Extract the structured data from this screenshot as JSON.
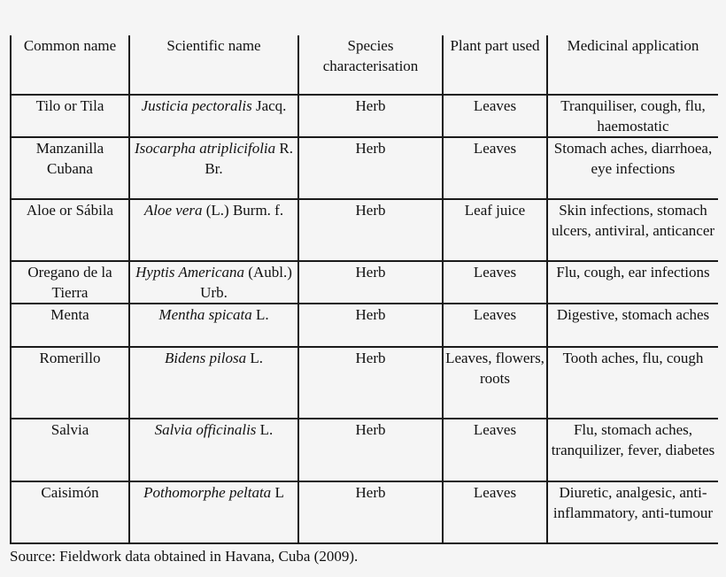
{
  "table": {
    "headers": [
      "Common name",
      "Scientific name",
      "Species characterisation",
      "Plant part used",
      "Medicinal application"
    ],
    "rows": [
      {
        "common": "Tilo or Tila",
        "sci_italic": "Justicia pectoralis",
        "sci_rest": "Jacq.",
        "species": "Herb",
        "part": "Leaves",
        "application": "Tranquiliser, cough, flu, haemostatic",
        "height": 48
      },
      {
        "common": "Manzanilla Cubana",
        "sci_italic": "Isocarpha atriplicifolia",
        "sci_rest": "R. Br.",
        "species": "Herb",
        "part": "Leaves",
        "application": "Stomach aches, diarrhoea, eye infections",
        "height": 70
      },
      {
        "common": "Aloe or Sábila",
        "sci_italic": "Aloe vera",
        "sci_rest": "(L.) Burm. f.",
        "species": "Herb",
        "part": "Leaf juice",
        "application": "Skin infections, stomach ulcers, antiviral, anticancer",
        "height": 70
      },
      {
        "common": "Oregano de la Tierra",
        "sci_italic": "Hyptis Americana",
        "sci_rest": "(Aubl.) Urb.",
        "species": "Herb",
        "part": "Leaves",
        "application": "Flu, cough, ear infections",
        "height": 47
      },
      {
        "common": "Menta",
        "sci_italic": "Mentha spicata",
        "sci_rest": "L.",
        "species": "Herb",
        "part": "Leaves",
        "application": "Digestive, stomach aches",
        "height": 49
      },
      {
        "common": "Romerillo",
        "sci_italic": "Bidens pilosa",
        "sci_rest": "L.",
        "species": "Herb",
        "part": "Leaves, flowers, roots",
        "application": "Tooth aches, flu, cough",
        "height": 81
      },
      {
        "common": "Salvia",
        "sci_italic": "Salvia officinalis",
        "sci_rest": "L.",
        "species": "Herb",
        "part": "Leaves",
        "application": "Flu, stomach aches, tranquilizer, fever, diabetes",
        "height": 71
      },
      {
        "common": "Caisimón",
        "sci_italic": "Pothomorphe peltata",
        "sci_rest": "L",
        "species": "Herb",
        "part": "Leaves",
        "application": "Diuretic, analgesic, anti-inflammatory, anti-tumour",
        "height": 70
      }
    ]
  },
  "source_note": "Source: Fieldwork data obtained in Havana, Cuba (2009)."
}
